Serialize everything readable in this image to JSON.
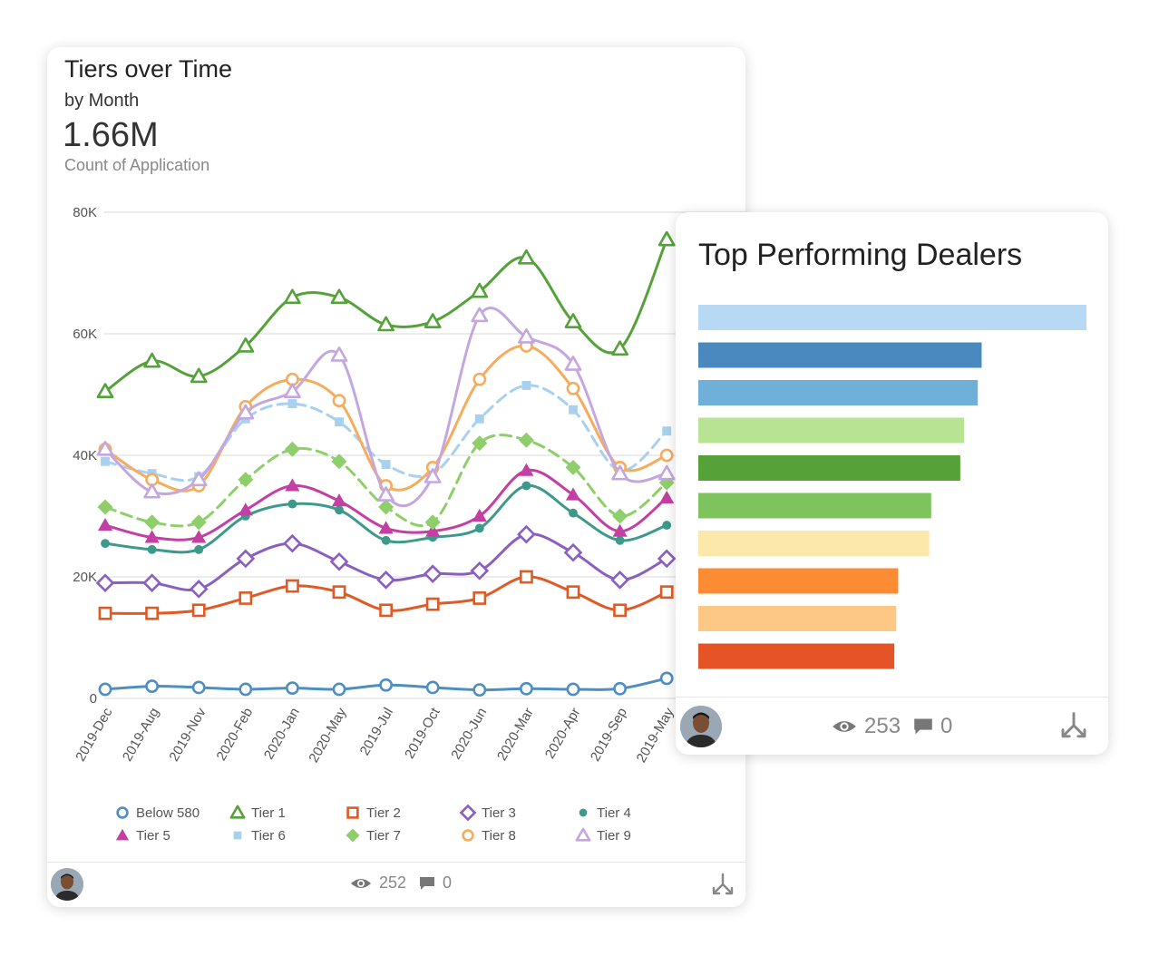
{
  "card1": {
    "title": "Tiers over Time",
    "subtitle": "by Month",
    "value": "1.66M",
    "measure": "Count of Application",
    "views": "252",
    "comments": "0"
  },
  "card2": {
    "title": "Top Performing Dealers",
    "views": "253",
    "comments": "0"
  },
  "icons": [
    "eye-icon",
    "comment-icon",
    "share-icon",
    "avatar"
  ],
  "chart_data": [
    {
      "type": "line",
      "x": [
        "2019-Dec",
        "2019-Aug",
        "2019-Nov",
        "2020-Feb",
        "2020-Jan",
        "2020-May",
        "2019-Jul",
        "2019-Oct",
        "2020-Jun",
        "2020-Mar",
        "2020-Apr",
        "2019-Sep",
        "2019-May"
      ],
      "ylim": [
        0,
        80000
      ],
      "yticks": [
        0,
        20000,
        40000,
        60000,
        80000
      ],
      "ytick_labels": [
        "0",
        "20K",
        "40K",
        "60K",
        "80K"
      ],
      "grid": true,
      "legend_position": "bottom",
      "series": [
        {
          "name": "Below 580",
          "color": "#4e8fc2",
          "marker": "circle-open",
          "values": [
            1500,
            2000,
            1800,
            1500,
            1700,
            1500,
            2200,
            1800,
            1400,
            1600,
            1500,
            1600,
            3300
          ]
        },
        {
          "name": "Tier 1",
          "color": "#55a13a",
          "marker": "triangle-open",
          "values": [
            50500,
            55500,
            53000,
            58000,
            66000,
            66000,
            61500,
            62000,
            67000,
            72500,
            62000,
            57500,
            75500
          ]
        },
        {
          "name": "Tier 2",
          "color": "#e05a25",
          "marker": "square-open",
          "values": [
            14000,
            14000,
            14500,
            16500,
            18500,
            17500,
            14500,
            15500,
            16500,
            20000,
            17500,
            14500,
            17500
          ]
        },
        {
          "name": "Tier 3",
          "color": "#8b5fc2",
          "marker": "diamond-open",
          "values": [
            19000,
            19000,
            18000,
            23000,
            25500,
            22500,
            19500,
            20500,
            21000,
            27000,
            24000,
            19500,
            23000
          ]
        },
        {
          "name": "Tier 4",
          "color": "#3d9a8b",
          "marker": "circle",
          "values": [
            25500,
            24500,
            24500,
            30000,
            32000,
            31000,
            26000,
            26500,
            28000,
            35000,
            30500,
            26000,
            28500
          ]
        },
        {
          "name": "Tier 5",
          "color": "#c33fa3",
          "marker": "triangle",
          "values": [
            28500,
            26500,
            26500,
            31000,
            35000,
            32500,
            28000,
            27500,
            30000,
            37500,
            33500,
            27500,
            33000
          ]
        },
        {
          "name": "Tier 6",
          "color": "#a7d1ef",
          "marker": "square",
          "values": [
            39000,
            37000,
            36500,
            46000,
            48500,
            45500,
            38500,
            37000,
            46000,
            51500,
            47500,
            37500,
            44000
          ]
        },
        {
          "name": "Tier 7",
          "color": "#8fcf6b",
          "marker": "diamond",
          "values": [
            31500,
            29000,
            29000,
            36000,
            41000,
            39000,
            31500,
            29000,
            42000,
            42500,
            38000,
            30000,
            35500
          ]
        },
        {
          "name": "Tier 8",
          "color": "#f6ac5e",
          "marker": "circle-open",
          "values": [
            41000,
            36000,
            35000,
            48000,
            52500,
            49000,
            35000,
            38000,
            52500,
            58000,
            51000,
            38000,
            40000
          ]
        },
        {
          "name": "Tier 9",
          "color": "#c4a7df",
          "marker": "triangle-open",
          "values": [
            41000,
            34000,
            36000,
            47000,
            50500,
            56500,
            33500,
            36500,
            63000,
            59500,
            55000,
            37000,
            37000
          ]
        }
      ]
    },
    {
      "type": "bar",
      "orientation": "horizontal",
      "values": [
        100,
        73,
        72,
        68.5,
        67.5,
        60,
        59.5,
        51.5,
        51,
        50.5
      ],
      "colors": [
        "#b8d9f4",
        "#4a89bf",
        "#6fb0d9",
        "#b7e393",
        "#57a238",
        "#7dc35e",
        "#fde8ab",
        "#fb8c34",
        "#fdc885",
        "#e45427"
      ]
    }
  ]
}
